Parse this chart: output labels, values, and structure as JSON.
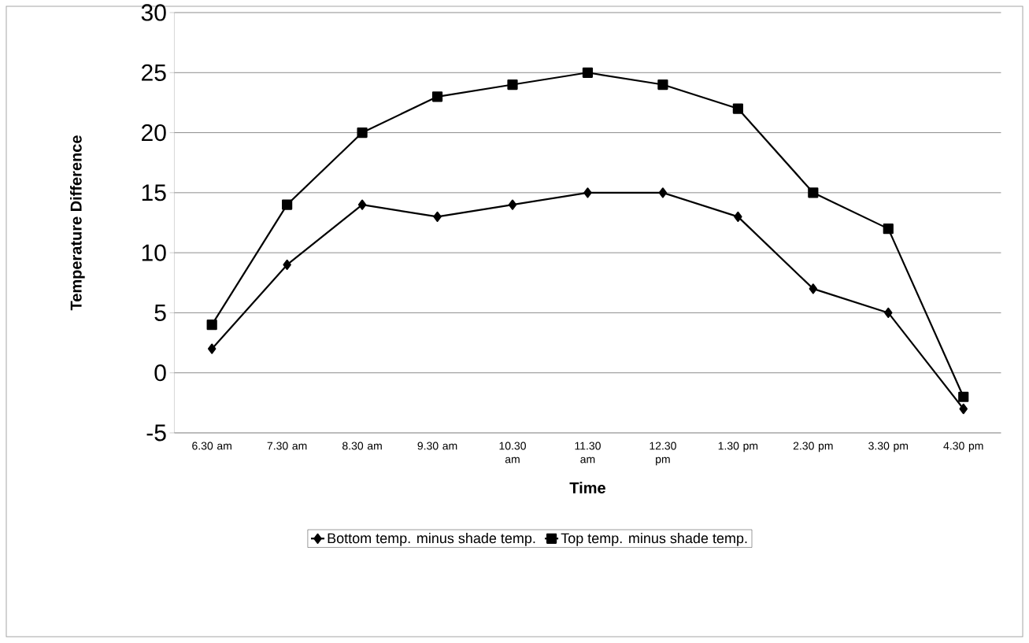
{
  "chart_data": {
    "type": "line",
    "xlabel": "Time",
    "ylabel": "Temperature Difference",
    "categories": [
      "6.30 am",
      "7.30 am",
      "8.30 am",
      "9.30 am",
      "10.30 am",
      "11.30 am",
      "12.30 pm",
      "1.30 pm",
      "2.30 pm",
      "3.30 pm",
      "4.30 pm"
    ],
    "series": [
      {
        "name": "Bottom temp. minus shade temp.",
        "color": "#000000",
        "marker": "diamond",
        "values": [
          2,
          9,
          14,
          13,
          14,
          15,
          15,
          13,
          7,
          5,
          -3
        ]
      },
      {
        "name": "Top temp. minus shade temp.",
        "color": "#000000",
        "marker": "square",
        "values": [
          4,
          14,
          20,
          23,
          24,
          25,
          24,
          22,
          15,
          12,
          -2
        ]
      }
    ],
    "ylim": [
      -5,
      30
    ],
    "yticks": [
      -5,
      0,
      5,
      10,
      15,
      20,
      25,
      30
    ],
    "grid": "y",
    "legend": "bottom",
    "line_style": "solid"
  }
}
